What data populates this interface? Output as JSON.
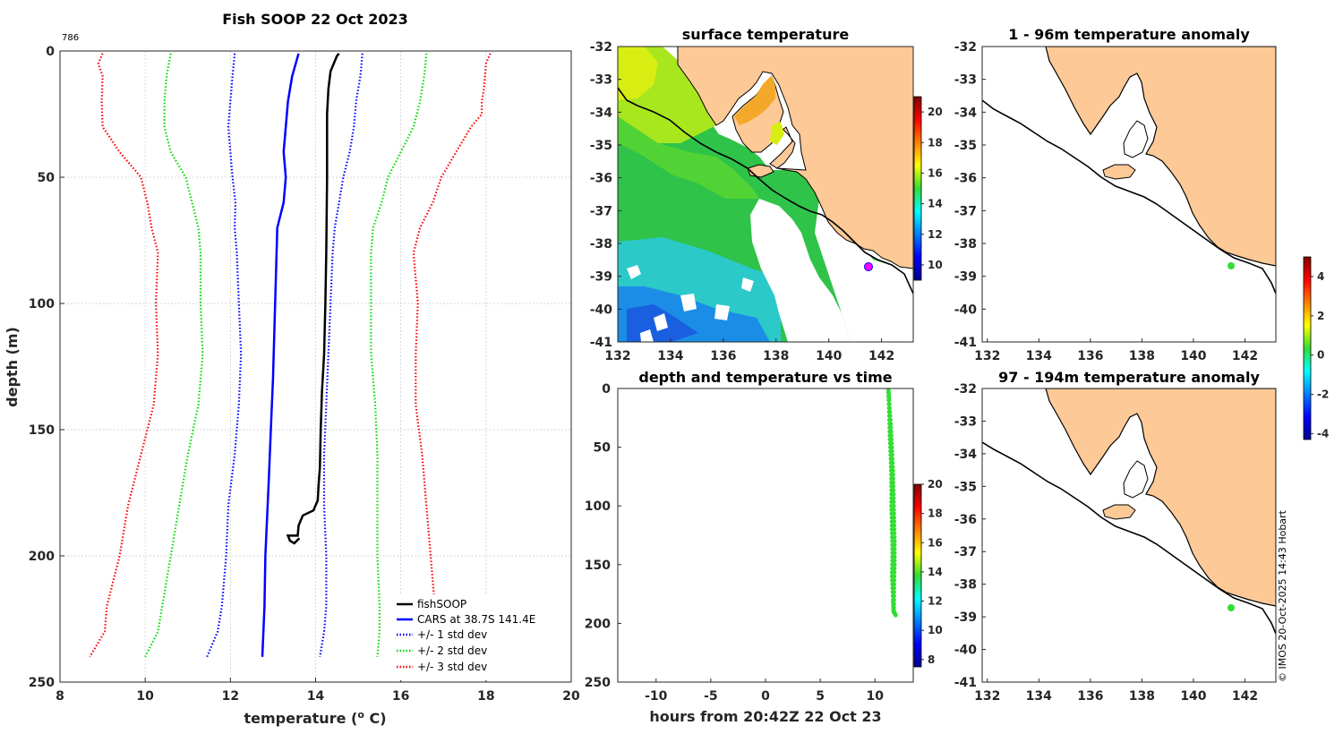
{
  "chart_data": [
    {
      "type": "line",
      "title": "Fish SOOP 22 Oct 2023",
      "annotation": "786",
      "xlabel": "temperature (",
      "xlabel_sup": "o",
      "xlabel_tail": " C)",
      "ylabel": "depth (m)",
      "xlim": [
        8,
        20
      ],
      "ylim": [
        0,
        250
      ],
      "xticks": [
        "8",
        "10",
        "12",
        "14",
        "16",
        "18",
        "20"
      ],
      "yticks": [
        "0",
        "50",
        "100",
        "150",
        "200",
        "250"
      ],
      "legend": [
        "fishSOOP",
        "CARS at 38.7S 141.4E",
        "+/- 1 std dev",
        "+/- 2 std dev",
        "+/- 3 std dev"
      ],
      "series": [
        {
          "name": "fishSOOP",
          "color": "#000000",
          "style": "solid",
          "points": [
            [
              14.55,
              1
            ],
            [
              14.5,
              2
            ],
            [
              14.45,
              4
            ],
            [
              14.35,
              8
            ],
            [
              14.3,
              15
            ],
            [
              14.27,
              25
            ],
            [
              14.27,
              50
            ],
            [
              14.25,
              80
            ],
            [
              14.23,
              100
            ],
            [
              14.2,
              120
            ],
            [
              14.15,
              135
            ],
            [
              14.12,
              150
            ],
            [
              14.1,
              165
            ],
            [
              14.07,
              172
            ],
            [
              14.05,
              178
            ],
            [
              13.95,
              182
            ],
            [
              13.7,
              184
            ],
            [
              13.6,
              188
            ],
            [
              13.58,
              192
            ],
            [
              13.35,
              192
            ],
            [
              13.4,
              194
            ],
            [
              13.5,
              195
            ],
            [
              13.62,
              193
            ]
          ]
        },
        {
          "name": "CARS at 38.7S 141.4E",
          "color": "#0000ff",
          "style": "solid",
          "points": [
            [
              13.6,
              1
            ],
            [
              13.45,
              10
            ],
            [
              13.35,
              20
            ],
            [
              13.3,
              30
            ],
            [
              13.25,
              40
            ],
            [
              13.3,
              50
            ],
            [
              13.25,
              60
            ],
            [
              13.1,
              70
            ],
            [
              13.05,
              100
            ],
            [
              13.0,
              130
            ],
            [
              12.95,
              150
            ],
            [
              12.9,
              170
            ],
            [
              12.82,
              200
            ],
            [
              12.8,
              220
            ],
            [
              12.75,
              240
            ]
          ]
        },
        {
          "name": "+/- 1 std dev",
          "color": "#0000ff",
          "style": "dotted",
          "points": [
            [
              12.1,
              1
            ],
            [
              12.05,
              10
            ],
            [
              12.0,
              20
            ],
            [
              11.95,
              30
            ],
            [
              12.0,
              40
            ],
            [
              12.05,
              50
            ],
            [
              12.12,
              60
            ],
            [
              12.1,
              70
            ],
            [
              12.15,
              80
            ],
            [
              12.2,
              100
            ],
            [
              12.25,
              120
            ],
            [
              12.2,
              140
            ],
            [
              12.1,
              160
            ],
            [
              11.95,
              180
            ],
            [
              11.9,
              200
            ],
            [
              11.8,
              220
            ],
            [
              11.7,
              230
            ],
            [
              11.45,
              240
            ]
          ]
        },
        {
          "name": "+/- 1 std dev",
          "color": "#0000ff",
          "style": "dotted",
          "points": [
            [
              15.1,
              1
            ],
            [
              15.05,
              10
            ],
            [
              14.95,
              20
            ],
            [
              14.9,
              30
            ],
            [
              14.8,
              40
            ],
            [
              14.65,
              50
            ],
            [
              14.55,
              60
            ],
            [
              14.45,
              70
            ],
            [
              14.4,
              80
            ],
            [
              14.35,
              100
            ],
            [
              14.3,
              120
            ],
            [
              14.25,
              140
            ],
            [
              14.2,
              160
            ],
            [
              14.2,
              180
            ],
            [
              14.25,
              200
            ],
            [
              14.25,
              220
            ],
            [
              14.2,
              230
            ],
            [
              14.1,
              240
            ]
          ]
        },
        {
          "name": "+/- 2 std dev",
          "color": "#00dd00",
          "style": "dotted",
          "points": [
            [
              10.6,
              1
            ],
            [
              10.5,
              10
            ],
            [
              10.45,
              20
            ],
            [
              10.45,
              30
            ],
            [
              10.6,
              40
            ],
            [
              10.95,
              50
            ],
            [
              11.1,
              60
            ],
            [
              11.25,
              70
            ],
            [
              11.3,
              80
            ],
            [
              11.3,
              100
            ],
            [
              11.35,
              120
            ],
            [
              11.25,
              140
            ],
            [
              11.0,
              160
            ],
            [
              10.8,
              180
            ],
            [
              10.6,
              200
            ],
            [
              10.4,
              220
            ],
            [
              10.3,
              230
            ],
            [
              10.0,
              240
            ]
          ]
        },
        {
          "name": "+/- 2 std dev",
          "color": "#00dd00",
          "style": "dotted",
          "points": [
            [
              16.6,
              1
            ],
            [
              16.55,
              10
            ],
            [
              16.45,
              20
            ],
            [
              16.3,
              30
            ],
            [
              16.0,
              40
            ],
            [
              15.7,
              50
            ],
            [
              15.55,
              60
            ],
            [
              15.35,
              70
            ],
            [
              15.3,
              80
            ],
            [
              15.3,
              100
            ],
            [
              15.3,
              120
            ],
            [
              15.4,
              140
            ],
            [
              15.45,
              160
            ],
            [
              15.45,
              180
            ],
            [
              15.45,
              200
            ],
            [
              15.5,
              220
            ],
            [
              15.5,
              230
            ],
            [
              15.45,
              240
            ]
          ]
        },
        {
          "name": "+/- 3 std dev",
          "color": "#ff0000",
          "style": "dotted",
          "points": [
            [
              9.0,
              1
            ],
            [
              8.9,
              5
            ],
            [
              9.0,
              10
            ],
            [
              8.98,
              20
            ],
            [
              9.0,
              30
            ],
            [
              9.4,
              40
            ],
            [
              9.9,
              50
            ],
            [
              10.05,
              60
            ],
            [
              10.15,
              70
            ],
            [
              10.3,
              80
            ],
            [
              10.25,
              100
            ],
            [
              10.3,
              120
            ],
            [
              10.2,
              140
            ],
            [
              9.9,
              160
            ],
            [
              9.6,
              180
            ],
            [
              9.4,
              200
            ],
            [
              9.1,
              220
            ],
            [
              9.05,
              230
            ],
            [
              8.7,
              240
            ]
          ]
        },
        {
          "name": "+/- 3 std dev",
          "color": "#ff0000",
          "style": "dotted",
          "points": [
            [
              18.1,
              1
            ],
            [
              18.0,
              5
            ],
            [
              17.95,
              15
            ],
            [
              17.9,
              20
            ],
            [
              17.9,
              25
            ],
            [
              17.65,
              30
            ],
            [
              17.3,
              40
            ],
            [
              16.95,
              50
            ],
            [
              16.75,
              60
            ],
            [
              16.45,
              70
            ],
            [
              16.3,
              80
            ],
            [
              16.4,
              100
            ],
            [
              16.35,
              120
            ],
            [
              16.35,
              140
            ],
            [
              16.5,
              160
            ],
            [
              16.6,
              180
            ],
            [
              16.7,
              200
            ],
            [
              16.8,
              220
            ],
            [
              16.85,
              230
            ],
            [
              16.95,
              240
            ]
          ]
        }
      ]
    },
    {
      "type": "heatmap",
      "title": "surface temperature",
      "xlim": [
        132,
        143.2
      ],
      "ylim": [
        -41,
        -32
      ],
      "xticks": [
        "132",
        "134",
        "136",
        "138",
        "140",
        "142"
      ],
      "yticks": [
        "-32",
        "-33",
        "-34",
        "-35",
        "-36",
        "-37",
        "-38",
        "-39",
        "-40",
        "-41"
      ],
      "colorbar": {
        "range": [
          9,
          21
        ],
        "ticks": [
          "10",
          "12",
          "14",
          "16",
          "18",
          "20"
        ]
      },
      "marker": {
        "lon": 141.4,
        "lat": -38.7,
        "color": "#ff00ff"
      }
    },
    {
      "type": "scatter",
      "title": "depth and temperature vs time",
      "xlabel": "hours from 20:42Z 22 Oct 23",
      "xlim": [
        -13.5,
        13.5
      ],
      "ylim": [
        0,
        250
      ],
      "xticks": [
        "-10",
        "-5",
        "0",
        "5",
        "10"
      ],
      "yticks": [
        "0",
        "50",
        "100",
        "150",
        "200",
        "250"
      ],
      "colorbar": {
        "range": [
          7.5,
          20
        ],
        "ticks": [
          "8",
          "10",
          "12",
          "14",
          "16",
          "18",
          "20"
        ]
      },
      "points": [
        [
          11.2,
          0
        ],
        [
          11.3,
          20
        ],
        [
          11.35,
          40
        ],
        [
          11.45,
          60
        ],
        [
          11.5,
          80
        ],
        [
          11.5,
          100
        ],
        [
          11.55,
          120
        ],
        [
          11.6,
          140
        ],
        [
          11.55,
          160
        ],
        [
          11.65,
          180
        ],
        [
          11.7,
          190
        ],
        [
          11.9,
          193
        ],
        [
          11.75,
          190
        ],
        [
          11.75,
          170
        ],
        [
          11.8,
          150
        ],
        [
          11.8,
          130
        ],
        [
          11.75,
          110
        ],
        [
          11.7,
          90
        ],
        [
          11.65,
          70
        ],
        [
          11.55,
          50
        ],
        [
          11.45,
          30
        ],
        [
          11.3,
          10
        ],
        [
          11.25,
          2
        ]
      ]
    },
    {
      "type": "heatmap",
      "title": "1 - 96m temperature anomaly",
      "xlim": [
        131.8,
        143.2
      ],
      "ylim": [
        -41,
        -32
      ],
      "xticks": [
        "132",
        "134",
        "136",
        "138",
        "140",
        "142"
      ],
      "yticks": [
        "-32",
        "-33",
        "-34",
        "-35",
        "-36",
        "-37",
        "-38",
        "-39",
        "-40",
        "-41"
      ],
      "marker": {
        "lon": 141.4,
        "lat": -38.7,
        "color": "#33dd33"
      }
    },
    {
      "type": "heatmap",
      "title": "97 - 194m temperature anomaly",
      "xlim": [
        131.8,
        143.2
      ],
      "ylim": [
        -41,
        -32
      ],
      "xticks": [
        "132",
        "134",
        "136",
        "138",
        "140",
        "142"
      ],
      "yticks": [
        "-32",
        "-33",
        "-34",
        "-35",
        "-36",
        "-37",
        "-38",
        "-39",
        "-40",
        "-41"
      ],
      "marker": {
        "lon": 141.4,
        "lat": -38.7,
        "color": "#33dd33"
      },
      "colorbar": {
        "range": [
          -4.3,
          5
        ],
        "ticks": [
          "4",
          "2",
          "0",
          "-2",
          "-4"
        ]
      }
    }
  ],
  "credit": "© IMOS 20-Oct-2025 14:43 Hobart",
  "colors": {
    "land": "#fdc996",
    "ocean_anomaly": "#ffffff",
    "coast": "#000000"
  }
}
